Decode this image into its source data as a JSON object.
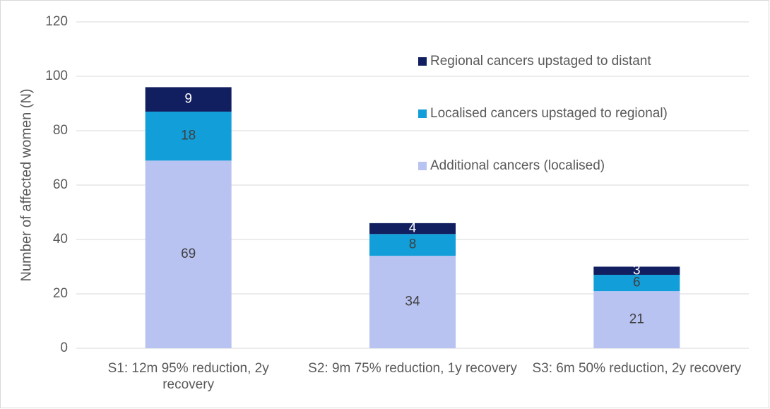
{
  "chart_data": {
    "type": "stacked_bar",
    "y_label": "Number of affected women (N)",
    "categories": [
      "S1: 12m 95% reduction, 2y recovery",
      "S2: 9m 75% reduction, 1y recovery",
      "S3: 6m 50% reduction, 2y recovery"
    ],
    "series": [
      {
        "name": "Additional cancers (localised)",
        "color": "#b8c3f2",
        "values": [
          69,
          34,
          21
        ]
      },
      {
        "name": "Localised cancers upstaged to regional)",
        "color": "#119ed9",
        "values": [
          18,
          8,
          6
        ]
      },
      {
        "name": "Regional cancers upstaged to distant",
        "color": "#111f60",
        "values": [
          9,
          4,
          3
        ]
      }
    ],
    "ylim": [
      0,
      120
    ],
    "yticks": [
      0,
      20,
      40,
      60,
      80,
      100,
      120
    ],
    "grid": true
  }
}
